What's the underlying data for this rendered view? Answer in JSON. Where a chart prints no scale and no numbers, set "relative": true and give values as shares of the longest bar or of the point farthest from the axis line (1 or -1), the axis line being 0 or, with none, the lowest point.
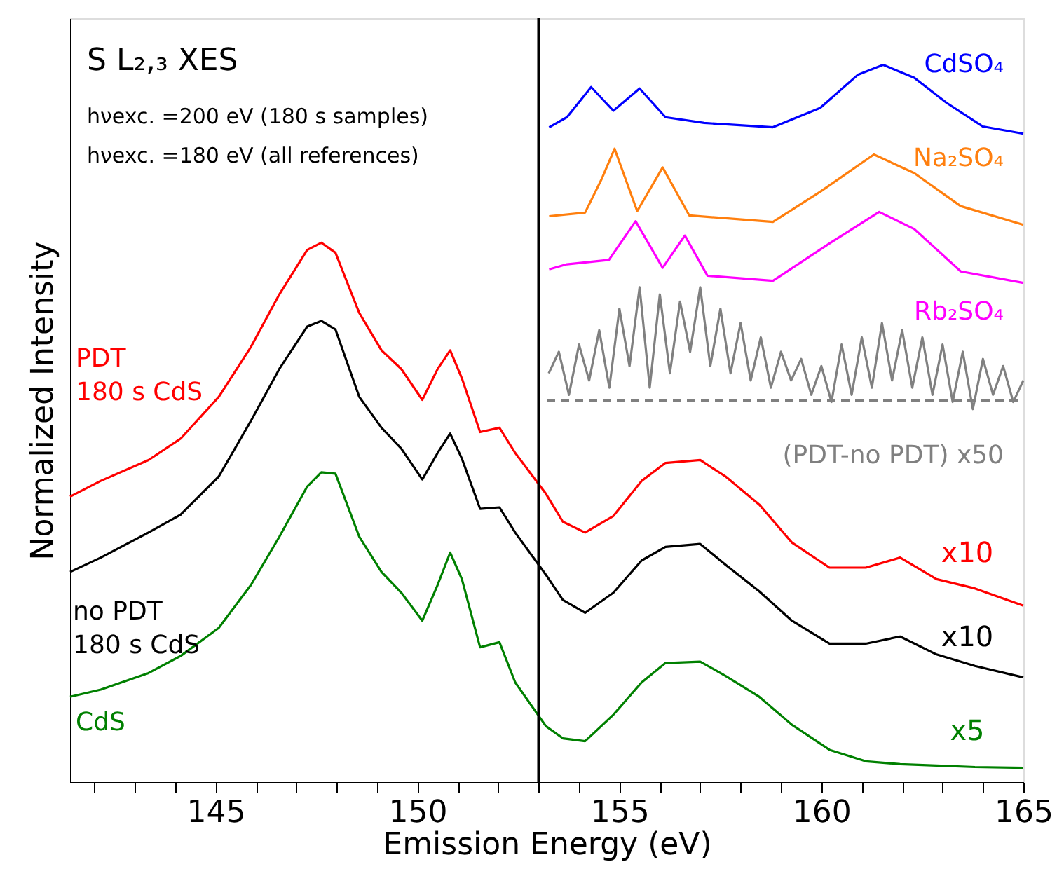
{
  "chart_data": {
    "type": "line",
    "title": "S L₂,₃ XES",
    "xlabel": "Emission Energy (eV)",
    "ylabel": "Normalized Intensity",
    "relative": true,
    "xlim": [
      141.4,
      165
    ],
    "xticks": [
      {
        "value": 142,
        "label": null
      },
      {
        "value": 143,
        "label": null
      },
      {
        "value": 144,
        "label": null
      },
      145,
      {
        "value": 146,
        "label": null
      },
      {
        "value": 147,
        "label": null
      },
      {
        "value": 148,
        "label": null
      },
      {
        "value": 149,
        "label": null
      },
      150,
      {
        "value": 151,
        "label": null
      },
      {
        "value": 152,
        "label": null
      },
      {
        "value": 153,
        "label": null
      },
      {
        "value": 154,
        "label": null
      },
      155,
      {
        "value": 156,
        "label": null
      },
      {
        "value": 157,
        "label": null
      },
      {
        "value": 158,
        "label": null
      },
      {
        "value": 159,
        "label": null
      },
      160,
      {
        "value": 161,
        "label": null
      },
      {
        "value": 162,
        "label": null
      },
      {
        "value": 163,
        "label": null
      },
      {
        "value": 164,
        "label": null
      },
      165
    ],
    "grid": false,
    "tick_labels": "x",
    "line_style": "solid",
    "marker": "none",
    "ref_lines": [
      {
        "axis": "x",
        "value": 153,
        "color": "#000000"
      }
    ],
    "annotations": [
      "hνexc. =200 eV (180 s samples)",
      "hνexc. =180 eV (all references)",
      "x10",
      "x10",
      "x5"
    ],
    "series": [
      {
        "name": "PDT\n180 s CdS",
        "color": "#ff0000",
        "x": [
          141.4,
          142.16,
          143.34,
          144.14,
          145.08,
          145.88,
          146.58,
          147.27,
          147.62,
          147.97,
          148.56,
          149.11,
          149.6,
          150.12,
          150.5,
          150.81,
          151.1,
          151.55,
          152.03,
          152.42,
          153.18,
          153.6,
          154.15,
          154.85,
          155.55,
          156.14,
          157.0,
          157.63,
          158.46,
          159.27,
          160.2,
          161.1,
          161.95,
          162.85,
          163.8,
          165
        ],
        "values": [
          0.398,
          0.42,
          0.449,
          0.479,
          0.537,
          0.607,
          0.68,
          0.742,
          0.752,
          0.738,
          0.654,
          0.602,
          0.576,
          0.533,
          0.576,
          0.602,
          0.563,
          0.488,
          0.494,
          0.459,
          0.402,
          0.363,
          0.348,
          0.371,
          0.42,
          0.445,
          0.449,
          0.426,
          0.387,
          0.334,
          0.299,
          0.299,
          0.313,
          0.283,
          0.27,
          0.246
        ]
      },
      {
        "name": "no PDT\n180 s CdS",
        "color": "#000000",
        "x": [
          141.4,
          142.16,
          143.34,
          144.14,
          145.08,
          145.88,
          146.58,
          147.27,
          147.62,
          147.97,
          148.56,
          149.11,
          149.6,
          150.12,
          150.5,
          150.81,
          151.1,
          151.55,
          152.03,
          152.42,
          153.18,
          153.6,
          154.15,
          154.85,
          155.55,
          156.14,
          157.0,
          157.63,
          158.46,
          159.27,
          160.2,
          161.1,
          161.95,
          162.85,
          163.8,
          165
        ],
        "values": [
          0.293,
          0.313,
          0.348,
          0.373,
          0.426,
          0.504,
          0.576,
          0.635,
          0.643,
          0.631,
          0.537,
          0.494,
          0.465,
          0.422,
          0.459,
          0.486,
          0.451,
          0.381,
          0.383,
          0.348,
          0.289,
          0.254,
          0.236,
          0.264,
          0.309,
          0.328,
          0.332,
          0.303,
          0.266,
          0.225,
          0.193,
          0.193,
          0.203,
          0.178,
          0.162,
          0.146
        ]
      },
      {
        "name": "CdS",
        "color": "#008000",
        "x": [
          141.4,
          142.16,
          143.34,
          144.14,
          145.08,
          145.88,
          146.58,
          147.27,
          147.62,
          147.97,
          148.56,
          149.11,
          149.6,
          150.12,
          150.5,
          150.81,
          151.1,
          151.55,
          152.03,
          152.42,
          153.18,
          153.6,
          154.15,
          154.85,
          155.55,
          156.14,
          157.0,
          157.63,
          158.46,
          159.27,
          160.2,
          161.1,
          161.95,
          162.85,
          163.8,
          165
        ],
        "values": [
          0.119,
          0.129,
          0.152,
          0.176,
          0.215,
          0.275,
          0.342,
          0.412,
          0.432,
          0.43,
          0.342,
          0.293,
          0.264,
          0.225,
          0.275,
          0.32,
          0.283,
          0.188,
          0.195,
          0.139,
          0.078,
          0.061,
          0.057,
          0.094,
          0.139,
          0.166,
          0.168,
          0.148,
          0.119,
          0.08,
          0.045,
          0.029,
          0.025,
          0.023,
          0.021,
          0.02
        ]
      },
      {
        "name": "CdSO₄",
        "color": "#0000ff",
        "x": [
          153.26,
          153.7,
          154.3,
          154.85,
          155.5,
          156.14,
          157.1,
          158.8,
          159.97,
          160.9,
          161.53,
          162.3,
          163.1,
          164.0,
          165
        ],
        "values": [
          0.913,
          0.927,
          0.969,
          0.936,
          0.967,
          0.927,
          0.919,
          0.913,
          0.94,
          0.986,
          1.0,
          0.982,
          0.947,
          0.914,
          0.904
        ]
      },
      {
        "name": "Na₂SO₄",
        "color": "#ff7f0e",
        "x": [
          153.26,
          154.15,
          154.57,
          154.88,
          155.44,
          156.07,
          156.73,
          158.8,
          159.97,
          161.3,
          162.3,
          163.45,
          165
        ],
        "values": [
          0.789,
          0.794,
          0.842,
          0.883,
          0.796,
          0.857,
          0.79,
          0.781,
          0.823,
          0.875,
          0.849,
          0.803,
          0.777
        ]
      },
      {
        "name": "Rb₂SO₄",
        "color": "#ff00ff",
        "x": [
          153.26,
          153.7,
          154.74,
          155.4,
          156.07,
          156.62,
          157.18,
          158.8,
          160.2,
          161.43,
          162.3,
          163.45,
          165
        ],
        "values": [
          0.715,
          0.722,
          0.728,
          0.782,
          0.717,
          0.762,
          0.706,
          0.699,
          0.751,
          0.795,
          0.771,
          0.712,
          0.696
        ]
      },
      {
        "name": "(PDT-no PDT) x50",
        "color": "#808080",
        "x": [
          153.25,
          153.5,
          153.75,
          154.0,
          154.25,
          154.5,
          154.75,
          155.0,
          155.25,
          155.5,
          155.75,
          156.0,
          156.25,
          156.5,
          156.75,
          157.0,
          157.25,
          157.5,
          157.75,
          158.0,
          158.25,
          158.5,
          158.75,
          159.0,
          159.25,
          159.5,
          159.75,
          160.0,
          160.25,
          160.5,
          160.75,
          161.0,
          161.25,
          161.5,
          161.75,
          162.0,
          162.25,
          162.5,
          162.75,
          163.0,
          163.25,
          163.5,
          163.75,
          164.0,
          164.25,
          164.5,
          164.75,
          165.0
        ],
        "values": [
          0.57,
          0.6,
          0.54,
          0.61,
          0.56,
          0.63,
          0.55,
          0.66,
          0.58,
          0.69,
          0.55,
          0.68,
          0.57,
          0.67,
          0.6,
          0.69,
          0.58,
          0.66,
          0.57,
          0.64,
          0.56,
          0.62,
          0.55,
          0.6,
          0.56,
          0.59,
          0.54,
          0.58,
          0.53,
          0.61,
          0.54,
          0.62,
          0.55,
          0.64,
          0.56,
          0.63,
          0.55,
          0.62,
          0.54,
          0.61,
          0.53,
          0.6,
          0.52,
          0.59,
          0.54,
          0.58,
          0.53,
          0.56
        ]
      },
      {
        "color": "#808080",
        "line_style": "dashed",
        "x": [
          153.2,
          165
        ],
        "values": [
          0.532,
          0.532
        ]
      }
    ]
  }
}
